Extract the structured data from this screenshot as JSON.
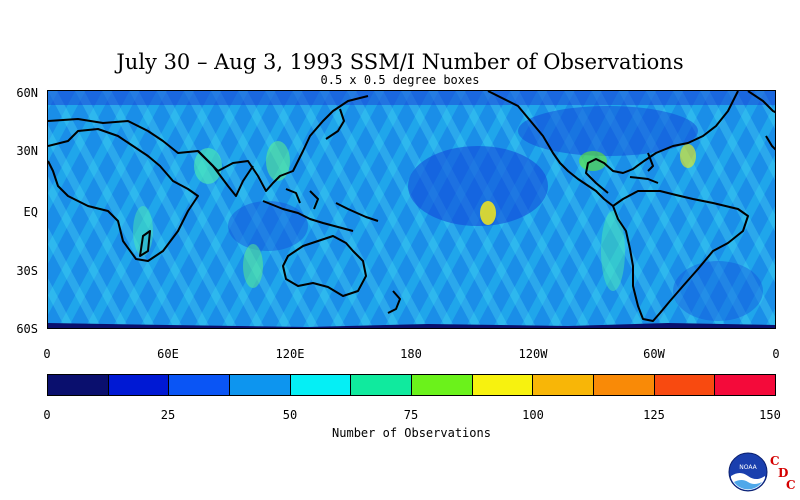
{
  "title": "July 30 – Aug 3, 1993 SSM/I Number of Observations",
  "subtitle": "0.5 x 0.5 degree boxes",
  "y_axis": {
    "ticks": [
      "60N",
      "30N",
      "EQ",
      "30S",
      "60S"
    ]
  },
  "x_axis": {
    "ticks": [
      "0",
      "60E",
      "120E",
      "180",
      "120W",
      "60W",
      "0"
    ]
  },
  "colorbar": {
    "title": "Number of Observations",
    "ticks": [
      "0",
      "25",
      "50",
      "75",
      "100",
      "125",
      "150"
    ],
    "colors": [
      "#0a0f6e",
      "#0019d4",
      "#0a55f5",
      "#0d95ef",
      "#05eff5",
      "#10ea9e",
      "#6bf21b",
      "#f7f20f",
      "#f8b607",
      "#f98a07",
      "#f84a10",
      "#f40a3a"
    ]
  },
  "logo": {
    "text": "NOAA",
    "letters": [
      "C",
      "D",
      "C"
    ]
  },
  "chart_data": {
    "type": "heatmap",
    "title": "July 30 – Aug 3, 1993 SSM/I Number of Observations",
    "subtitle": "0.5 x 0.5 degree boxes",
    "xlabel": "",
    "ylabel": "",
    "x_ticks": [
      "0",
      "60E",
      "120E",
      "180",
      "120W",
      "60W",
      "0"
    ],
    "y_ticks": [
      "60N",
      "30N",
      "EQ",
      "30S",
      "60S"
    ],
    "colorbar_label": "Number of Observations",
    "colorbar_range": [
      0,
      150
    ],
    "colorbar_ticks": [
      0,
      25,
      50,
      75,
      100,
      125,
      150
    ],
    "lon_range": [
      0,
      360
    ],
    "lat_range": [
      -60,
      60
    ],
    "typical_value_range": [
      25,
      75
    ],
    "peak_value": 100
  }
}
